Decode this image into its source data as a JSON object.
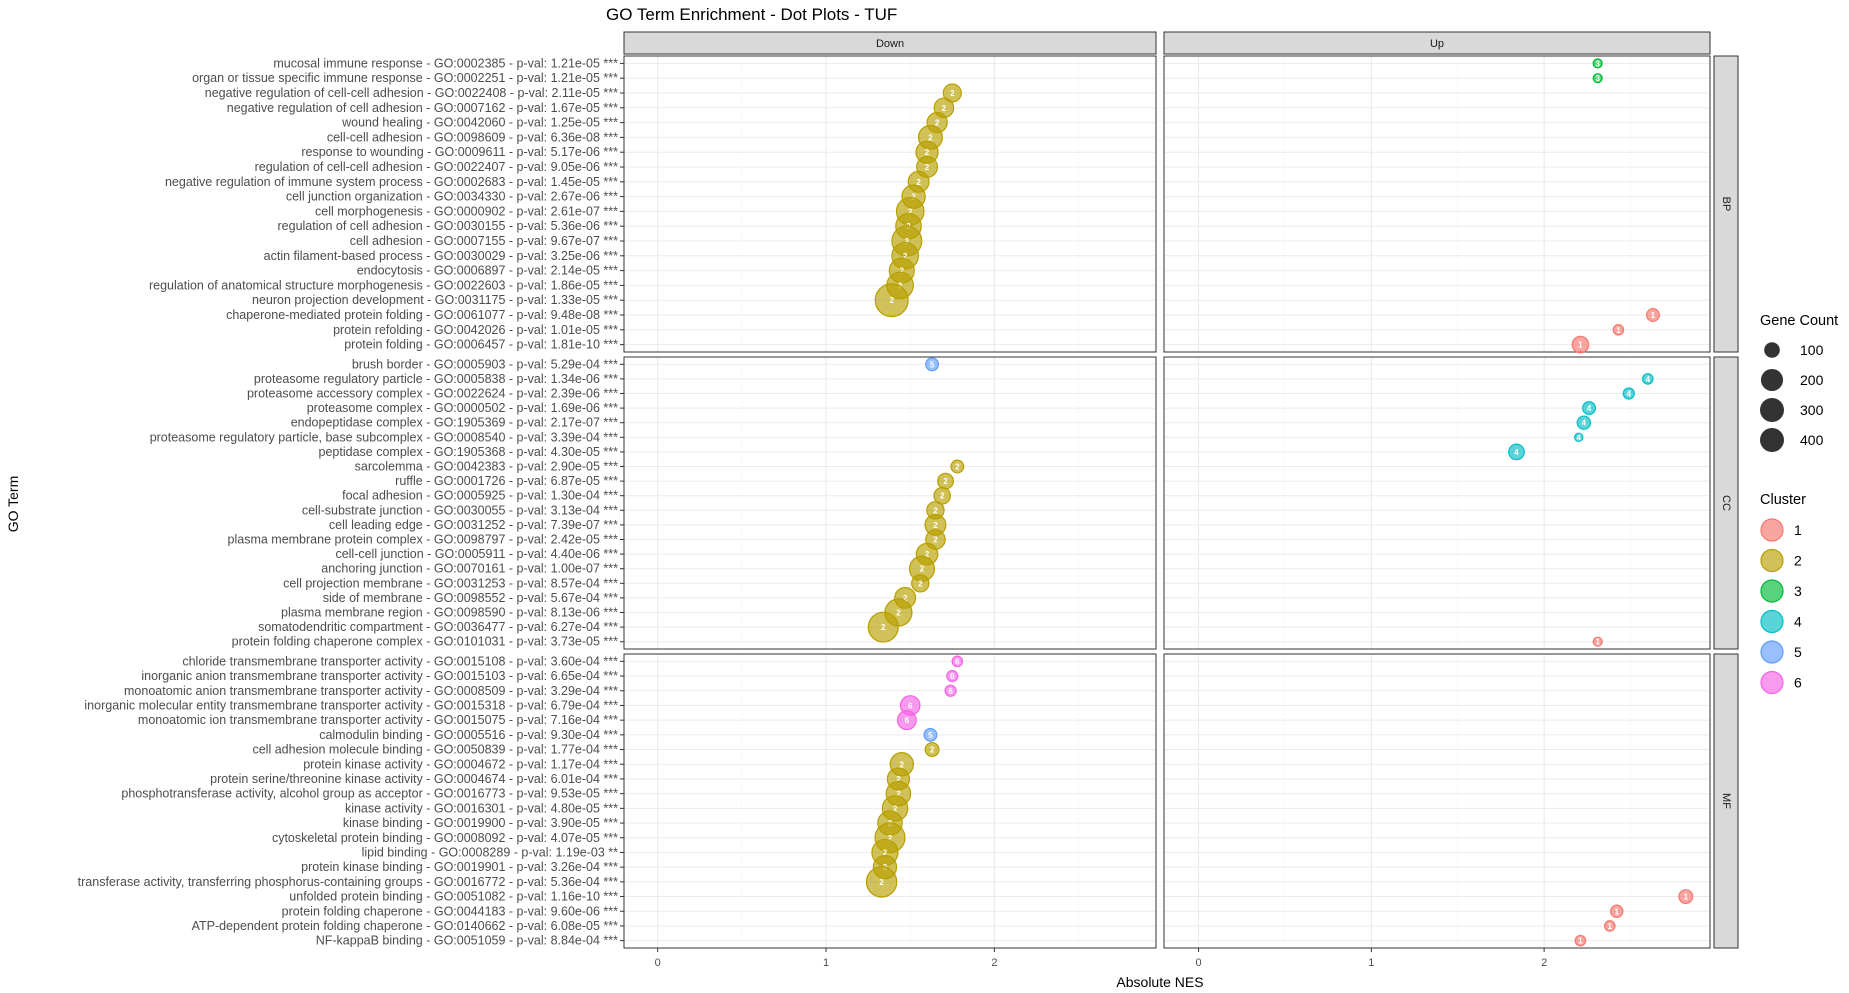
{
  "chart_data": {
    "type": "scatter",
    "title": "GO Term Enrichment - Dot Plots - TUF",
    "xlabel": "Absolute NES",
    "ylabel": "GO Term",
    "xlim": [
      -0.2,
      2.96
    ],
    "x_ticks": [
      0,
      1,
      2
    ],
    "grid": true,
    "column_facets": [
      "Down",
      "Up"
    ],
    "row_facets": [
      {
        "name": "BP",
        "terms": [
          {
            "label": "mucosal immune response - GO:0002385 - p-val: 1.21e-05 ***",
            "direction": "Up",
            "nes": 2.31,
            "cluster": 3,
            "gene_count": 30
          },
          {
            "label": "organ or tissue specific immune response - GO:0002251 - p-val: 1.21e-05 ***",
            "direction": "Up",
            "nes": 2.31,
            "cluster": 3,
            "gene_count": 30
          },
          {
            "label": "negative regulation of cell-cell adhesion - GO:0022408 - p-val: 2.11e-05 ***",
            "direction": "Down",
            "nes": 1.75,
            "cluster": 2,
            "gene_count": 120
          },
          {
            "label": "negative regulation of cell adhesion - GO:0007162 - p-val: 1.67e-05 ***",
            "direction": "Down",
            "nes": 1.7,
            "cluster": 2,
            "gene_count": 140
          },
          {
            "label": "wound healing - GO:0042060 - p-val: 1.25e-05 ***",
            "direction": "Down",
            "nes": 1.66,
            "cluster": 2,
            "gene_count": 150
          },
          {
            "label": "cell-cell adhesion - GO:0098609 - p-val: 6.36e-08 ***",
            "direction": "Down",
            "nes": 1.62,
            "cluster": 2,
            "gene_count": 210
          },
          {
            "label": "response to wounding - GO:0009611 - p-val: 5.17e-06 ***",
            "direction": "Down",
            "nes": 1.6,
            "cluster": 2,
            "gene_count": 180
          },
          {
            "label": "regulation of cell-cell adhesion - GO:0022407 - p-val: 9.05e-06 ***",
            "direction": "Down",
            "nes": 1.6,
            "cluster": 2,
            "gene_count": 160
          },
          {
            "label": "negative regulation of immune system process - GO:0002683 - p-val: 1.45e-05 ***",
            "direction": "Down",
            "nes": 1.55,
            "cluster": 2,
            "gene_count": 160
          },
          {
            "label": "cell junction organization - GO:0034330 - p-val: 2.67e-06 ***",
            "direction": "Down",
            "nes": 1.52,
            "cluster": 2,
            "gene_count": 200
          },
          {
            "label": "cell morphogenesis - GO:0000902 - p-val: 2.61e-07 ***",
            "direction": "Down",
            "nes": 1.5,
            "cluster": 2,
            "gene_count": 280
          },
          {
            "label": "regulation of cell adhesion - GO:0030155 - p-val: 5.36e-06 ***",
            "direction": "Down",
            "nes": 1.49,
            "cluster": 2,
            "gene_count": 240
          },
          {
            "label": "cell adhesion - GO:0007155 - p-val: 9.67e-07 ***",
            "direction": "Down",
            "nes": 1.48,
            "cluster": 2,
            "gene_count": 330
          },
          {
            "label": "actin filament-based process - GO:0030029 - p-val: 3.25e-06 ***",
            "direction": "Down",
            "nes": 1.47,
            "cluster": 2,
            "gene_count": 260
          },
          {
            "label": "endocytosis - GO:0006897 - p-val: 2.14e-05 ***",
            "direction": "Down",
            "nes": 1.45,
            "cluster": 2,
            "gene_count": 230
          },
          {
            "label": "regulation of anatomical structure morphogenesis - GO:0022603 - p-val: 1.86e-05 ***",
            "direction": "Down",
            "nes": 1.44,
            "cluster": 2,
            "gene_count": 260
          },
          {
            "label": "neuron projection development - GO:0031175 - p-val: 1.33e-05 ***",
            "direction": "Down",
            "nes": 1.39,
            "cluster": 2,
            "gene_count": 400
          },
          {
            "label": "chaperone-mediated protein folding - GO:0061077 - p-val: 9.48e-08 ***",
            "direction": "Up",
            "nes": 2.63,
            "cluster": 1,
            "gene_count": 60
          },
          {
            "label": "protein refolding - GO:0042026 - p-val: 1.01e-05 ***",
            "direction": "Up",
            "nes": 2.43,
            "cluster": 1,
            "gene_count": 40
          },
          {
            "label": "protein folding - GO:0006457 - p-val: 1.81e-10 ***",
            "direction": "Up",
            "nes": 2.21,
            "cluster": 1,
            "gene_count": 100
          }
        ]
      },
      {
        "name": "CC",
        "terms": [
          {
            "label": "brush border - GO:0005903 - p-val: 5.29e-04 ***",
            "direction": "Down",
            "nes": 1.63,
            "cluster": 5,
            "gene_count": 60
          },
          {
            "label": "proteasome regulatory particle - GO:0005838 - p-val: 1.34e-06 ***",
            "direction": "Up",
            "nes": 2.6,
            "cluster": 4,
            "gene_count": 40
          },
          {
            "label": "proteasome accessory complex - GO:0022624 - p-val: 2.39e-06 ***",
            "direction": "Up",
            "nes": 2.49,
            "cluster": 4,
            "gene_count": 45
          },
          {
            "label": "proteasome complex - GO:0000502 - p-val: 1.69e-06 ***",
            "direction": "Up",
            "nes": 2.26,
            "cluster": 4,
            "gene_count": 60
          },
          {
            "label": "endopeptidase complex - GO:1905369 - p-val: 2.17e-07 ***",
            "direction": "Up",
            "nes": 2.23,
            "cluster": 4,
            "gene_count": 65
          },
          {
            "label": "proteasome regulatory particle, base subcomplex - GO:0008540 - p-val: 3.39e-04 ***",
            "direction": "Up",
            "nes": 2.2,
            "cluster": 4,
            "gene_count": 25
          },
          {
            "label": "peptidase complex - GO:1905368 - p-val: 4.30e-05 ***",
            "direction": "Up",
            "nes": 1.84,
            "cluster": 4,
            "gene_count": 90
          },
          {
            "label": "sarcolemma - GO:0042383 - p-val: 2.90e-05 ***",
            "direction": "Down",
            "nes": 1.78,
            "cluster": 2,
            "gene_count": 60
          },
          {
            "label": "ruffle - GO:0001726 - p-val: 6.87e-05 ***",
            "direction": "Down",
            "nes": 1.71,
            "cluster": 2,
            "gene_count": 90
          },
          {
            "label": "focal adhesion - GO:0005925 - p-val: 1.30e-04 ***",
            "direction": "Down",
            "nes": 1.69,
            "cluster": 2,
            "gene_count": 100
          },
          {
            "label": "cell-substrate junction - GO:0030055 - p-val: 3.13e-04 ***",
            "direction": "Down",
            "nes": 1.65,
            "cluster": 2,
            "gene_count": 110
          },
          {
            "label": "cell leading edge - GO:0031252 - p-val: 7.39e-07 ***",
            "direction": "Down",
            "nes": 1.65,
            "cluster": 2,
            "gene_count": 160
          },
          {
            "label": "plasma membrane protein complex - GO:0098797 - p-val: 2.42e-05 ***",
            "direction": "Down",
            "nes": 1.65,
            "cluster": 2,
            "gene_count": 140
          },
          {
            "label": "cell-cell junction - GO:0005911 - p-val: 4.40e-06 ***",
            "direction": "Down",
            "nes": 1.6,
            "cluster": 2,
            "gene_count": 170
          },
          {
            "label": "anchoring junction - GO:0070161 - p-val: 1.00e-07 ***",
            "direction": "Down",
            "nes": 1.57,
            "cluster": 2,
            "gene_count": 230
          },
          {
            "label": "cell projection membrane - GO:0031253 - p-val: 8.57e-04 ***",
            "direction": "Down",
            "nes": 1.56,
            "cluster": 2,
            "gene_count": 110
          },
          {
            "label": "side of membrane - GO:0098552 - p-val: 5.67e-04 ***",
            "direction": "Down",
            "nes": 1.47,
            "cluster": 2,
            "gene_count": 160
          },
          {
            "label": "plasma membrane region - GO:0098590 - p-val: 8.13e-06 ***",
            "direction": "Down",
            "nes": 1.43,
            "cluster": 2,
            "gene_count": 270
          },
          {
            "label": "somatodendritic compartment - GO:0036477 - p-val: 6.27e-04 ***",
            "direction": "Down",
            "nes": 1.34,
            "cluster": 2,
            "gene_count": 330
          },
          {
            "label": "protein folding chaperone complex - GO:0101031 - p-val: 3.73e-05 ***",
            "direction": "Up",
            "nes": 2.31,
            "cluster": 1,
            "gene_count": 30
          }
        ]
      },
      {
        "name": "MF",
        "terms": [
          {
            "label": "chloride transmembrane transporter activity - GO:0015108 - p-val: 3.60e-04 ***",
            "direction": "Down",
            "nes": 1.78,
            "cluster": 6,
            "gene_count": 40
          },
          {
            "label": "inorganic anion transmembrane transporter activity - GO:0015103 - p-val: 6.65e-04 ***",
            "direction": "Down",
            "nes": 1.75,
            "cluster": 6,
            "gene_count": 45
          },
          {
            "label": "monoatomic anion transmembrane transporter activity - GO:0008509 - p-val: 3.29e-04 ***",
            "direction": "Down",
            "nes": 1.74,
            "cluster": 6,
            "gene_count": 45
          },
          {
            "label": "inorganic molecular entity transmembrane transporter activity - GO:0015318 - p-val: 6.79e-04 ***",
            "direction": "Down",
            "nes": 1.5,
            "cluster": 6,
            "gene_count": 140
          },
          {
            "label": "monoatomic ion transmembrane transporter activity - GO:0015075 - p-val: 7.16e-04 ***",
            "direction": "Down",
            "nes": 1.48,
            "cluster": 6,
            "gene_count": 130
          },
          {
            "label": "calmodulin binding - GO:0005516 - p-val: 9.30e-04 ***",
            "direction": "Down",
            "nes": 1.62,
            "cluster": 5,
            "gene_count": 60
          },
          {
            "label": "cell adhesion molecule binding - GO:0050839 - p-val: 1.77e-04 ***",
            "direction": "Down",
            "nes": 1.63,
            "cluster": 2,
            "gene_count": 70
          },
          {
            "label": "protein kinase activity - GO:0004672 - p-val: 1.17e-04 ***",
            "direction": "Down",
            "nes": 1.45,
            "cluster": 2,
            "gene_count": 200
          },
          {
            "label": "protein serine/threonine kinase activity - GO:0004674 - p-val: 6.01e-04 ***",
            "direction": "Down",
            "nes": 1.43,
            "cluster": 2,
            "gene_count": 180
          },
          {
            "label": "phosphotransferase activity, alcohol group as acceptor - GO:0016773 - p-val: 9.53e-05 ***",
            "direction": "Down",
            "nes": 1.43,
            "cluster": 2,
            "gene_count": 220
          },
          {
            "label": "kinase activity - GO:0016301 - p-val: 4.80e-05 ***",
            "direction": "Down",
            "nes": 1.41,
            "cluster": 2,
            "gene_count": 240
          },
          {
            "label": "kinase binding - GO:0019900 - p-val: 3.90e-05 ***",
            "direction": "Down",
            "nes": 1.38,
            "cluster": 2,
            "gene_count": 220
          },
          {
            "label": "cytoskeletal protein binding - GO:0008092 - p-val: 4.07e-05 ***",
            "direction": "Down",
            "nes": 1.38,
            "cluster": 2,
            "gene_count": 330
          },
          {
            "label": "lipid binding - GO:0008289 - p-val: 1.19e-03 **",
            "direction": "Down",
            "nes": 1.35,
            "cluster": 2,
            "gene_count": 250
          },
          {
            "label": "protein kinase binding - GO:0019901 - p-val: 3.26e-04 ***",
            "direction": "Down",
            "nes": 1.35,
            "cluster": 2,
            "gene_count": 200
          },
          {
            "label": "transferase activity, transferring phosphorus-containing groups - GO:0016772 - p-val: 5.36e-04 ***",
            "direction": "Down",
            "nes": 1.33,
            "cluster": 2,
            "gene_count": 340
          },
          {
            "label": "unfolded protein binding - GO:0051082 - p-val: 1.16e-10 ***",
            "direction": "Up",
            "nes": 2.82,
            "cluster": 1,
            "gene_count": 70
          },
          {
            "label": "protein folding chaperone - GO:0044183 - p-val: 9.60e-06 ***",
            "direction": "Up",
            "nes": 2.42,
            "cluster": 1,
            "gene_count": 55
          },
          {
            "label": "ATP-dependent protein folding chaperone - GO:0140662 - p-val: 6.08e-05 ***",
            "direction": "Up",
            "nes": 2.38,
            "cluster": 1,
            "gene_count": 40
          },
          {
            "label": "NF-kappaB binding - GO:0051059 - p-val: 8.84e-04 ***",
            "direction": "Up",
            "nes": 2.21,
            "cluster": 1,
            "gene_count": 40
          }
        ]
      }
    ],
    "legends": {
      "size": {
        "title": "Gene Count",
        "values": [
          100,
          200,
          300,
          400
        ]
      },
      "color": {
        "title": "Cluster",
        "entries": [
          {
            "label": "1",
            "color": "#F8766D"
          },
          {
            "label": "2",
            "color": "#B79F00"
          },
          {
            "label": "3",
            "color": "#00BA38"
          },
          {
            "label": "4",
            "color": "#00BFC4"
          },
          {
            "label": "5",
            "color": "#619CFF"
          },
          {
            "label": "6",
            "color": "#F564E3"
          }
        ]
      },
      "placement": "right"
    }
  }
}
